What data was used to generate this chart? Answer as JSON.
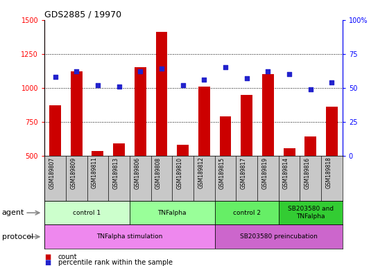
{
  "title": "GDS2885 / 19970",
  "samples": [
    "GSM189807",
    "GSM189809",
    "GSM189811",
    "GSM189813",
    "GSM189806",
    "GSM189808",
    "GSM189810",
    "GSM189812",
    "GSM189815",
    "GSM189817",
    "GSM189819",
    "GSM189814",
    "GSM189816",
    "GSM189818"
  ],
  "counts": [
    870,
    1120,
    535,
    590,
    1150,
    1410,
    580,
    1010,
    790,
    950,
    1100,
    555,
    640,
    860
  ],
  "percentile_ranks": [
    58,
    62,
    52,
    51,
    62,
    64,
    52,
    56,
    65,
    57,
    62,
    60,
    49,
    54
  ],
  "ylim_left": [
    500,
    1500
  ],
  "ylim_right": [
    0,
    100
  ],
  "yticks_left": [
    500,
    750,
    1000,
    1250,
    1500
  ],
  "yticks_right": [
    0,
    25,
    50,
    75,
    100
  ],
  "bar_color": "#cc0000",
  "dot_color": "#2222cc",
  "agent_groups": [
    {
      "label": "control 1",
      "start": 0,
      "end": 3,
      "color": "#ccffcc"
    },
    {
      "label": "TNFalpha",
      "start": 4,
      "end": 7,
      "color": "#99ff99"
    },
    {
      "label": "control 2",
      "start": 8,
      "end": 10,
      "color": "#66ee66"
    },
    {
      "label": "SB203580 and\nTNFalpha",
      "start": 11,
      "end": 13,
      "color": "#33cc33"
    }
  ],
  "protocol_groups": [
    {
      "label": "TNFalpha stimulation",
      "start": 0,
      "end": 7,
      "color": "#ee88ee"
    },
    {
      "label": "SB203580 preincubation",
      "start": 8,
      "end": 13,
      "color": "#cc66cc"
    }
  ],
  "legend_count_label": "count",
  "legend_pct_label": "percentile rank within the sample",
  "xlabel_agent": "agent",
  "xlabel_protocol": "protocol",
  "tick_area_color": "#c8c8c8",
  "dotted_lines": [
    750,
    1000,
    1250
  ],
  "bar_bottom": 500,
  "bar_width": 0.55
}
